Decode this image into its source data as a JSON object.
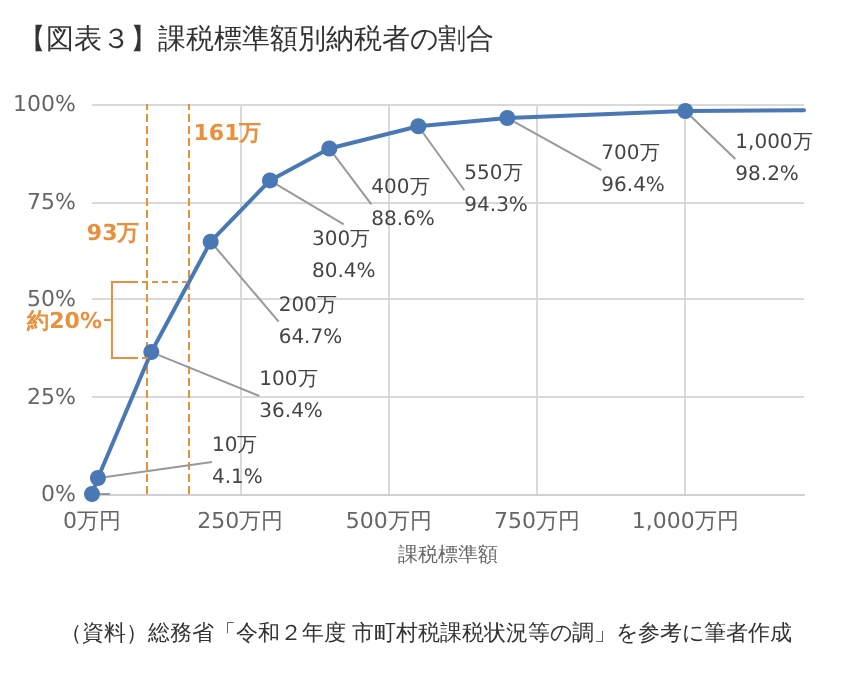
{
  "chart_data": {
    "type": "line",
    "title": "【図表３】課税標準額別納税者の割合",
    "xlabel": "課税標準額",
    "x": [
      0,
      10,
      100,
      200,
      300,
      400,
      550,
      700,
      1000
    ],
    "series": [
      {
        "color": "#4a78b4",
        "values": [
          0,
          4.1,
          36.4,
          64.7,
          80.4,
          88.6,
          94.3,
          96.4,
          98.2
        ],
        "value_labels": [
          null,
          "10万\n4.1%",
          "100万\n36.4%",
          "200万\n64.7%",
          "300万\n80.4%",
          "400万\n88.6%",
          "550万\n94.3%",
          "700万\n96.4%",
          "1,000万\n98.2%"
        ]
      },
      {
        "color": "#4a78b4",
        "marker": "none",
        "x": [
          1000,
          1200
        ],
        "values": [
          98.2,
          98.4
        ]
      }
    ],
    "xlim": [
      0,
      1200
    ],
    "xticks": [
      {
        "value": 0,
        "label": "0万円"
      },
      {
        "value": 250,
        "label": "250万円"
      },
      {
        "value": 500,
        "label": "500万円"
      },
      {
        "value": 750,
        "label": "750万円"
      },
      {
        "value": 1000,
        "label": "1,000万円"
      }
    ],
    "ylim": [
      0,
      100
    ],
    "yticks": [
      {
        "value": 0,
        "label": "0%"
      },
      {
        "value": 25,
        "label": "25%"
      },
      {
        "value": 50,
        "label": "50%"
      },
      {
        "value": 75,
        "label": "75%"
      },
      {
        "value": 100,
        "label": "100%"
      }
    ],
    "ref_lines": [
      {
        "axis": "x",
        "value": 93,
        "label": "93万",
        "color": "#e8903c",
        "line_style": "dashed"
      },
      {
        "axis": "x",
        "value": 161,
        "label": "161万",
        "color": "#e8903c",
        "line_style": "dashed"
      }
    ],
    "annotations": [
      "約20%",
      "（資料）総務省「令和２年度 市町村税課税状況等の調」を参考に筆者作成"
    ],
    "grid": true,
    "marker": "circle",
    "line_style": "solid"
  }
}
